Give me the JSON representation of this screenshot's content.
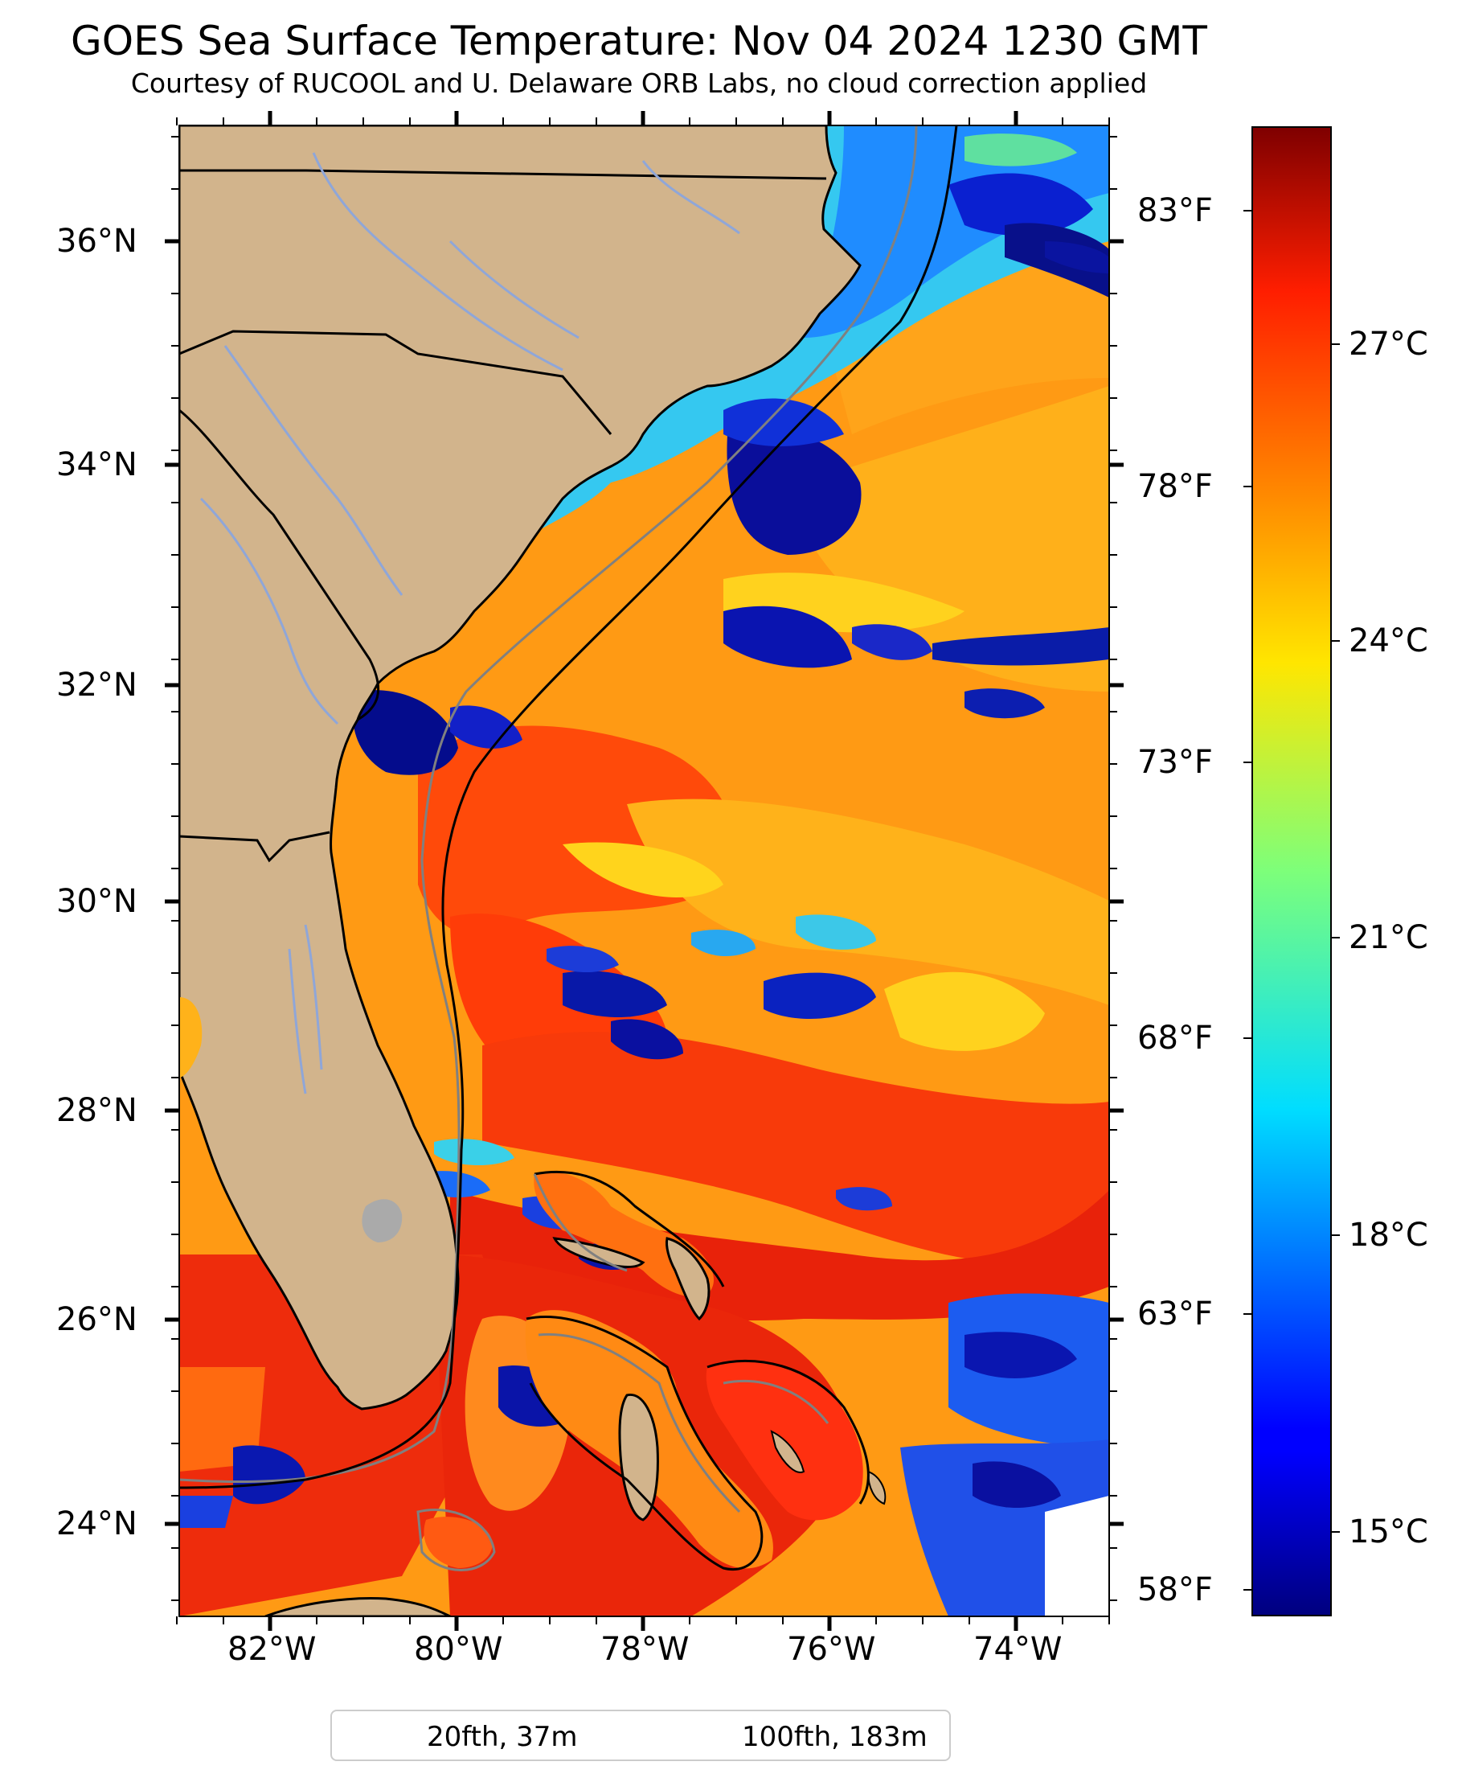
{
  "title": "GOES Sea Surface Temperature: Nov 04 2024 1230 GMT",
  "subtitle": "Courtesy of RUCOOL and U. Delaware ORB Labs, no cloud correction applied",
  "map": {
    "lat_labels": [
      "36°N",
      "34°N",
      "32°N",
      "30°N",
      "28°N",
      "26°N",
      "24°N"
    ],
    "lon_labels": [
      "82°W",
      "80°W",
      "78°W",
      "76°W",
      "74°W"
    ],
    "land_color": "#d2b48c",
    "lake_color": "#aaaaaa",
    "extent": {
      "lon_min": -83,
      "lon_max": -73,
      "lat_min": 23,
      "lat_max": 37
    }
  },
  "colorbar": {
    "fahrenheit_labels": [
      "83°F",
      "78°F",
      "73°F",
      "68°F",
      "63°F",
      "58°F"
    ],
    "celsius_labels": [
      "27°C",
      "24°C",
      "21°C",
      "18°C",
      "15°C"
    ],
    "colormap": "jet"
  },
  "legend": {
    "items": [
      {
        "label": "20fth, 37m",
        "color": "#808080"
      },
      {
        "label": "100fth, 183m",
        "color": "#000000"
      }
    ]
  }
}
